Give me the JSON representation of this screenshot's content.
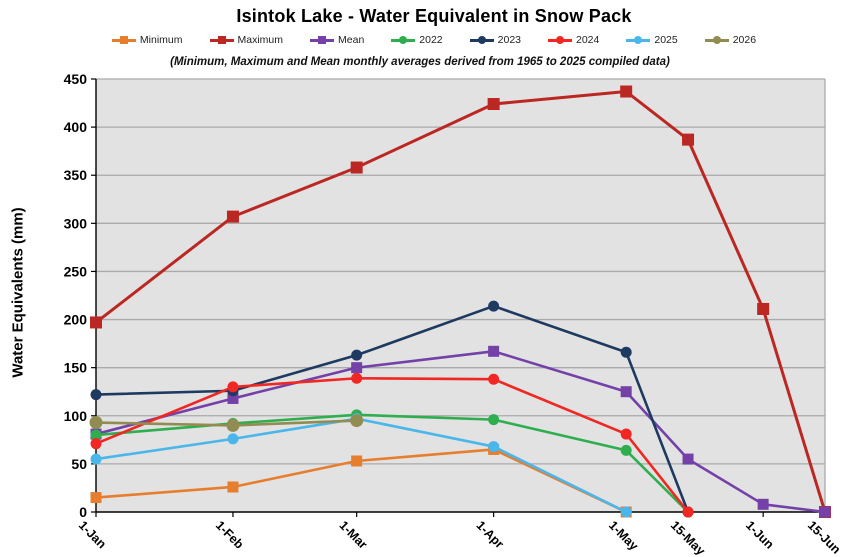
{
  "chart_data": {
    "type": "line",
    "title": "Isintok Lake - Water Equivalent in Snow Pack",
    "subtitle": "(Minimum, Maximum and Mean monthly averages derived from 1965 to 2025 compiled data)",
    "ylabel": "Water Equivalents (mm)",
    "ylim": [
      0,
      450
    ],
    "ytick_step": 50,
    "grid": true,
    "legend_position": "top",
    "plot_bg_color": "#E2E2E2",
    "grid_color": "#AAAAAA",
    "axis_color": "#000000",
    "x_tick_labels": [
      "1-Jan",
      "1-Feb",
      "1-Mar",
      "1-Apr",
      "1-May",
      "15-May",
      "1-Jun",
      "15-Jun"
    ],
    "x_tick_days": [
      0,
      31,
      59,
      90,
      120,
      134,
      151,
      165
    ],
    "series": [
      {
        "name": "Minimum",
        "color": "#E67E2E",
        "marker": "square",
        "days": [
          0,
          31,
          59,
          90,
          120
        ],
        "values": [
          15,
          26,
          53,
          65,
          0
        ]
      },
      {
        "name": "Maximum",
        "color": "#BB2823",
        "marker": "square",
        "days": [
          0,
          31,
          59,
          90,
          120,
          134,
          151,
          165
        ],
        "values": [
          197,
          307,
          358,
          424,
          437,
          387,
          211,
          0
        ]
      },
      {
        "name": "Mean",
        "color": "#7441A8",
        "marker": "square",
        "days": [
          0,
          31,
          59,
          90,
          120,
          134,
          151,
          165
        ],
        "values": [
          81,
          118,
          150,
          167,
          125,
          55,
          8,
          0
        ]
      },
      {
        "name": "2022",
        "color": "#2EAE4E",
        "marker": "circle",
        "days": [
          0,
          31,
          59,
          90,
          120,
          134
        ],
        "values": [
          80,
          92,
          101,
          96,
          64,
          0
        ]
      },
      {
        "name": "2023",
        "color": "#1F3A60",
        "marker": "circle",
        "days": [
          0,
          31,
          59,
          90,
          120,
          134
        ],
        "values": [
          122,
          126,
          163,
          214,
          166,
          0
        ]
      },
      {
        "name": "2024",
        "color": "#F02722",
        "marker": "circle",
        "days": [
          0,
          31,
          59,
          90,
          120,
          134
        ],
        "values": [
          71,
          130,
          139,
          138,
          81,
          0
        ]
      },
      {
        "name": "2025",
        "color": "#4AB6EA",
        "marker": "circle",
        "days": [
          0,
          31,
          59,
          90,
          120
        ],
        "values": [
          55,
          76,
          97,
          68,
          0
        ]
      },
      {
        "name": "2026",
        "color": "#918C52",
        "marker": "circle",
        "days": [
          0,
          31,
          59
        ],
        "values": [
          93,
          90,
          95
        ]
      }
    ]
  }
}
